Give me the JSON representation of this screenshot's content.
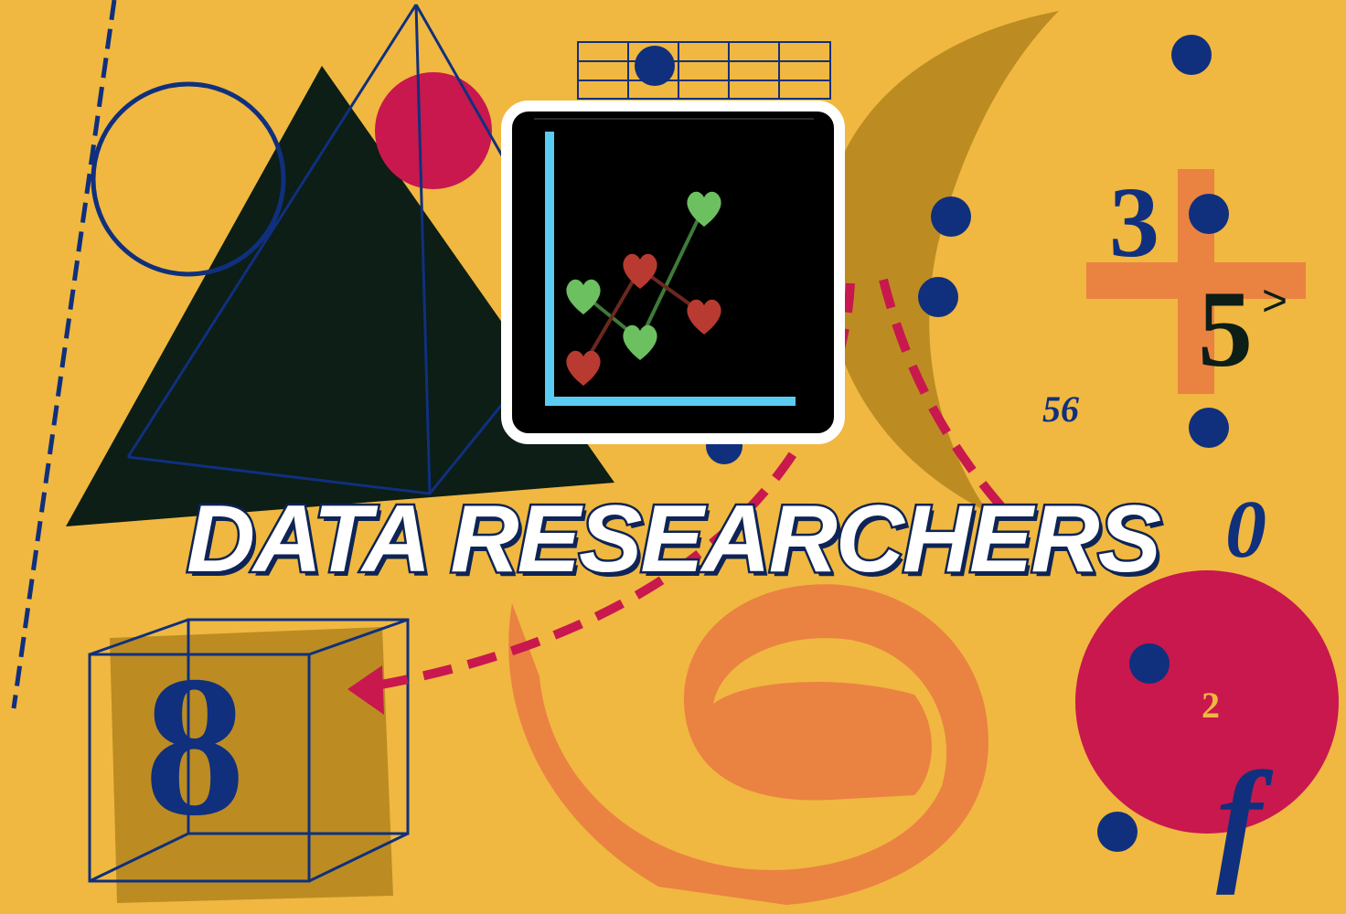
{
  "title": "DATA RESEARCHERS",
  "glyphs": {
    "three": "3",
    "five": "5",
    "gt": ">",
    "fifty_six": "56",
    "zero": "0",
    "eight": "8",
    "two": "2",
    "f": "f"
  },
  "colors": {
    "background": "#F0B840",
    "navy": "#10307E",
    "crimson": "#C8184E",
    "orange": "#EA8242",
    "olive": "#BC8C22",
    "dark_triangle": "#0C1E16",
    "chart_axis": "#5ACCF4",
    "heart_green": "#6DC060",
    "heart_red": "#B83A30"
  },
  "icons": [
    "line-chart-icon",
    "green-heart-icon",
    "red-heart-icon",
    "dashed-arrow-icon",
    "wireframe-cube-icon",
    "wireframe-pyramid-icon"
  ]
}
